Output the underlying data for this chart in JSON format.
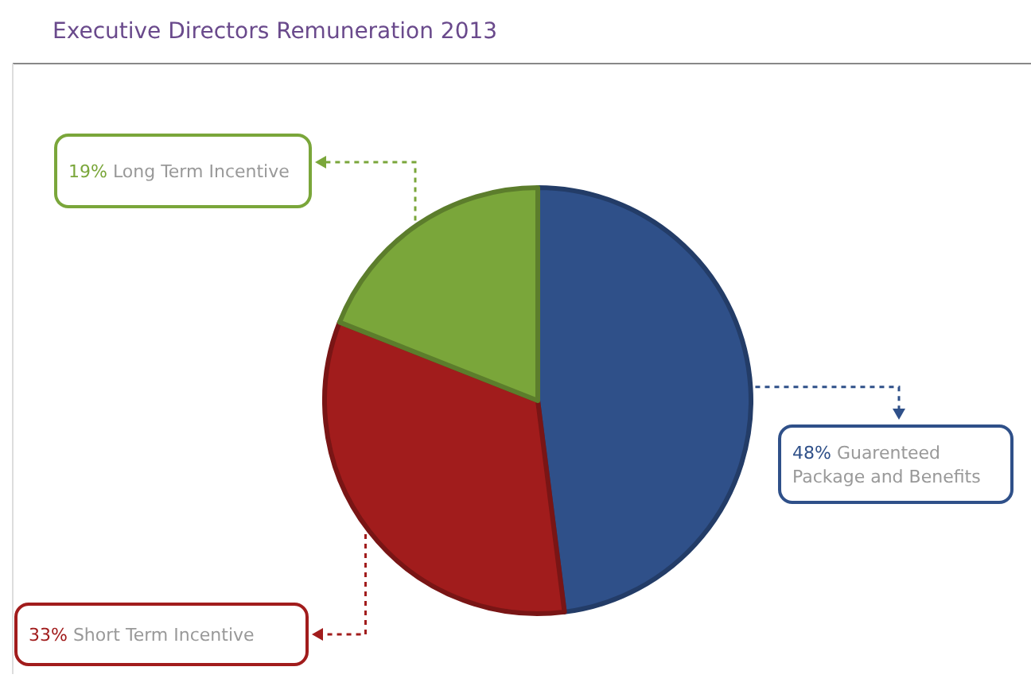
{
  "chart_data": {
    "type": "pie",
    "title": "Executive Directors Remuneration 2013",
    "categories": [
      "Guarenteed Package and Benefits",
      "Short Term Incentive",
      "Long Term Incentive"
    ],
    "values": [
      48,
      33,
      19
    ],
    "value_labels": [
      "48%",
      "33%",
      "19%"
    ],
    "colors": [
      "#2f5089",
      "#a11c1c",
      "#7aa63a"
    ]
  }
}
